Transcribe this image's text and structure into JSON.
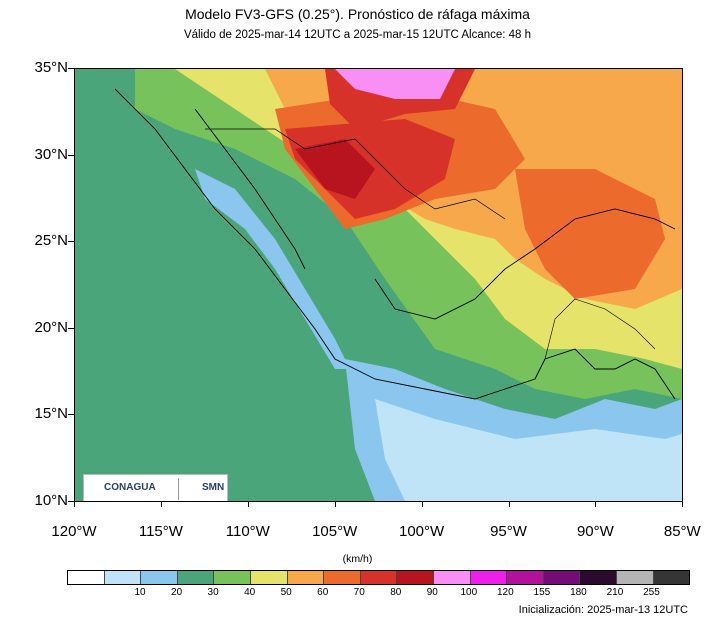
{
  "title": "Modelo FV3-GFS (0.25°). Pronóstico de ráfaga máxima",
  "subtitle": "Válido de 2025-mar-14 12UTC a 2025-mar-15 12UTC    Alcance: 48 h",
  "lat_labels": [
    "35°N",
    "30°N",
    "25°N",
    "20°N",
    "15°N",
    "10°N"
  ],
  "lon_labels": [
    "120°W",
    "115°W",
    "110°W",
    "105°W",
    "100°W",
    "95°W",
    "90°W",
    "85°W"
  ],
  "unit_label": "(km/h)",
  "legend": {
    "colors": [
      "#ffffff",
      "#bfe3f7",
      "#8ac6ee",
      "#4aa67a",
      "#77c25a",
      "#e6e36a",
      "#f6a84a",
      "#ec6a2c",
      "#d7322a",
      "#b8141f",
      "#f98ef5",
      "#ee1fe8",
      "#b3119b",
      "#740c77",
      "#2b0a2e",
      "#b4b4b4",
      "#353535"
    ],
    "labels": [
      "10",
      "20",
      "30",
      "40",
      "50",
      "60",
      "70",
      "80",
      "90",
      "100",
      "120",
      "155",
      "180",
      "210",
      "255"
    ]
  },
  "init_label": "Inicialización: 2025-mar-13 12UTC",
  "logos": {
    "conagua": "CONAGUA",
    "smn": "SMN"
  }
}
